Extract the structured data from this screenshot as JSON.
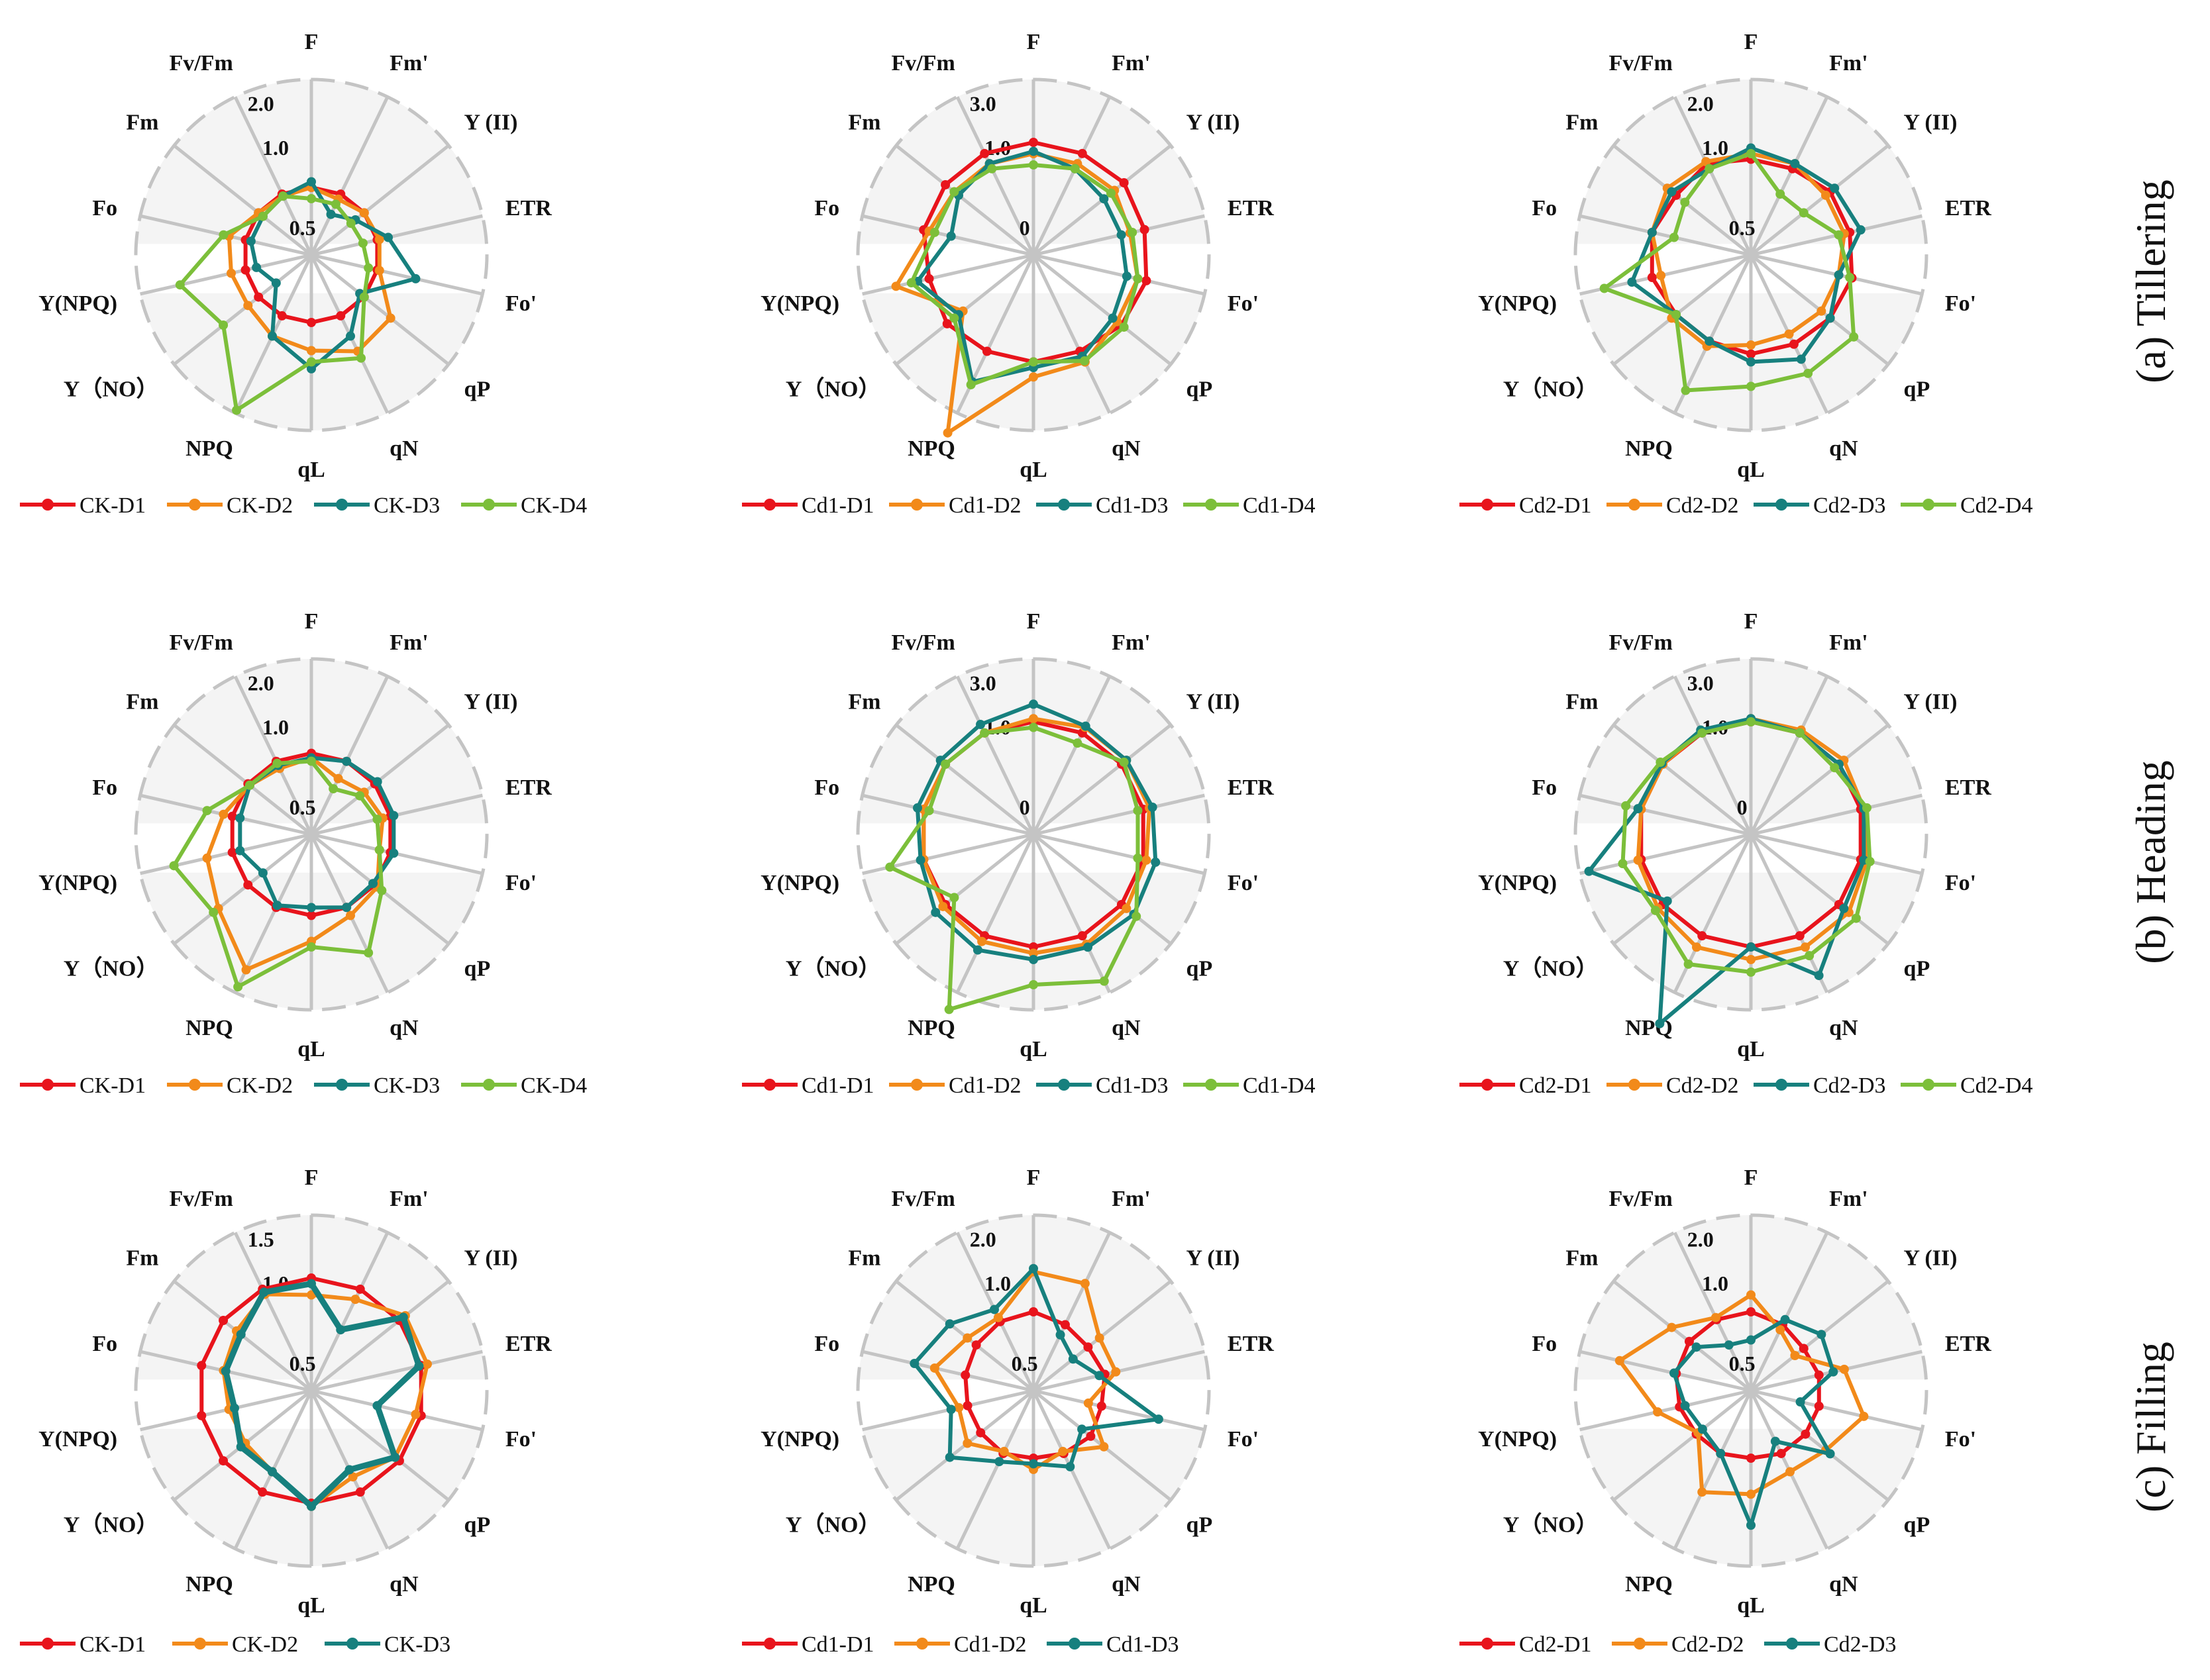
{
  "axes": [
    "F",
    "Fm'",
    "Y (II)",
    "ETR",
    "Fo'",
    "qP",
    "qN",
    "qL",
    "NPQ",
    "Y（NO）",
    "Y(NPQ)",
    "Fo",
    "Fm",
    "Fv/Fm"
  ],
  "colors": {
    "D1": "#e8141c",
    "D2": "#f28a1a",
    "D3": "#17807e",
    "D4": "#7cbf3a",
    "grid": "#c4c4c4",
    "band": "#f4f4f4"
  },
  "row_labels": [
    "(a) Tillering",
    "(b) Heading",
    "(c) Filling"
  ],
  "chart_data": [
    {
      "type": "radar",
      "row": 0,
      "col": 0,
      "ring_labels": [
        "0.5",
        "1.0",
        "2.0"
      ],
      "series": [
        {
          "name": "CK-D1",
          "values": [
            0.6,
            0.6,
            0.6,
            0.6,
            0.6,
            0.6,
            0.6,
            0.6,
            0.6,
            0.6,
            0.6,
            0.6,
            0.6,
            0.6
          ]
        },
        {
          "name": "CK-D2",
          "values": [
            0.6,
            0.55,
            0.6,
            0.62,
            0.62,
            0.9,
            0.95,
            0.85,
            0.8,
            0.72,
            0.73,
            0.75,
            0.6,
            0.58
          ]
        },
        {
          "name": "CK-D3",
          "values": [
            0.65,
            0.4,
            0.5,
            0.7,
            0.95,
            0.55,
            0.8,
            1.02,
            0.8,
            0.4,
            0.5,
            0.55,
            0.55,
            0.58
          ]
        },
        {
          "name": "CK-D4",
          "values": [
            0.5,
            0.5,
            0.45,
            0.47,
            0.52,
            0.6,
            1.03,
            0.95,
            1.95,
            1.0,
            1.35,
            0.8,
            0.55,
            0.58
          ]
        }
      ]
    },
    {
      "type": "radar",
      "row": 0,
      "col": 1,
      "ring_labels": [
        "0",
        "1.0",
        "3.0"
      ],
      "series": [
        {
          "name": "Cd1-D1",
          "values": [
            1.0,
            1.0,
            1.05,
            1.02,
            1.05,
            1.0,
            0.95,
            0.95,
            0.95,
            0.98,
            0.95,
            1.0,
            1.0,
            1.0
          ]
        },
        {
          "name": "Cd1-D2",
          "values": [
            0.9,
            0.9,
            0.92,
            0.88,
            0.95,
            0.95,
            1.1,
            1.15,
            2.35,
            0.8,
            1.45,
            0.95,
            0.9,
            0.9
          ]
        },
        {
          "name": "Cd1-D3",
          "values": [
            0.92,
            0.85,
            0.8,
            0.8,
            0.85,
            0.9,
            1.0,
            1.0,
            1.45,
            0.85,
            1.1,
            0.75,
            0.85,
            0.9
          ]
        },
        {
          "name": "Cd1-D4",
          "values": [
            0.8,
            0.85,
            0.88,
            0.9,
            0.95,
            1.05,
            1.08,
            0.95,
            1.5,
            0.9,
            1.2,
            0.9,
            0.9,
            0.85
          ]
        }
      ]
    },
    {
      "type": "radar",
      "row": 0,
      "col": 2,
      "ring_labels": [
        "0.5",
        "1.0",
        "2.0"
      ],
      "series": [
        {
          "name": "Cd2-D1",
          "values": [
            0.85,
            0.85,
            0.9,
            0.9,
            0.92,
            0.9,
            0.88,
            0.88,
            0.85,
            0.85,
            0.9,
            0.9,
            0.85,
            0.9
          ]
        },
        {
          "name": "Cd2-D2",
          "values": [
            0.9,
            0.9,
            0.85,
            0.85,
            0.8,
            0.8,
            0.78,
            0.8,
            0.9,
            0.9,
            0.82,
            0.9,
            0.95,
            0.92
          ]
        },
        {
          "name": "Cd2-D3",
          "values": [
            0.95,
            0.9,
            0.95,
            1.0,
            0.8,
            0.9,
            1.05,
            0.95,
            0.85,
            0.85,
            1.15,
            0.9,
            0.9,
            0.85
          ]
        },
        {
          "name": "Cd2-D4",
          "values": [
            0.9,
            0.6,
            0.6,
            0.8,
            0.9,
            1.3,
            1.3,
            1.3,
            1.6,
            0.85,
            1.6,
            0.7,
            0.75,
            0.85
          ]
        }
      ]
    },
    {
      "type": "radar",
      "row": 1,
      "col": 0,
      "ring_labels": [
        "0.5",
        "1.0",
        "2.0"
      ],
      "series": [
        {
          "name": "CK-D1",
          "values": [
            0.72,
            0.72,
            0.72,
            0.72,
            0.72,
            0.72,
            0.72,
            0.72,
            0.72,
            0.72,
            0.72,
            0.72,
            0.72,
            0.72
          ]
        },
        {
          "name": "CK-D2",
          "values": [
            0.68,
            0.55,
            0.6,
            0.65,
            0.62,
            0.75,
            0.8,
            0.95,
            1.6,
            1.1,
            0.95,
            0.8,
            0.7,
            0.65
          ]
        },
        {
          "name": "CK-D3",
          "values": [
            0.68,
            0.72,
            0.75,
            0.75,
            0.75,
            0.7,
            0.72,
            0.65,
            0.7,
            0.55,
            0.65,
            0.65,
            0.7,
            0.68
          ]
        },
        {
          "name": "CK-D4",
          "values": [
            0.65,
            0.45,
            0.55,
            0.6,
            0.62,
            0.8,
            1.3,
            1.0,
            1.9,
            1.2,
            1.45,
            0.95,
            0.7,
            0.7
          ]
        }
      ]
    },
    {
      "type": "radar",
      "row": 1,
      "col": 1,
      "ring_labels": [
        "0",
        "1.0",
        "3.0"
      ],
      "series": [
        {
          "name": "Cd1-D1",
          "values": [
            1.0,
            1.0,
            1.0,
            1.0,
            1.0,
            1.0,
            1.0,
            1.0,
            1.0,
            1.0,
            1.0,
            1.0,
            1.0,
            1.0
          ]
        },
        {
          "name": "Cd1-D2",
          "values": [
            1.05,
            1.1,
            1.1,
            1.1,
            1.05,
            1.1,
            1.15,
            1.1,
            1.1,
            1.05,
            1.0,
            1.0,
            1.0,
            1.0
          ]
        },
        {
          "name": "Cd1-D3",
          "values": [
            1.28,
            1.12,
            1.1,
            1.15,
            1.2,
            1.25,
            1.2,
            1.2,
            1.25,
            1.2,
            1.05,
            1.1,
            1.1,
            1.15
          ]
        },
        {
          "name": "Cd1-D4",
          "values": [
            0.95,
            0.9,
            1.05,
            0.95,
            0.95,
            1.3,
            1.8,
            1.6,
            2.3,
            0.9,
            1.55,
            0.95,
            1.0,
            1.0
          ]
        }
      ]
    },
    {
      "type": "radar",
      "row": 1,
      "col": 2,
      "ring_labels": [
        "0",
        "1.0",
        "3.0"
      ],
      "series": [
        {
          "name": "Cd2-D1",
          "values": [
            1.0,
            1.0,
            1.0,
            1.0,
            1.0,
            1.0,
            1.0,
            1.0,
            1.0,
            1.0,
            1.0,
            1.0,
            1.0,
            1.0
          ]
        },
        {
          "name": "Cd2-D2",
          "values": [
            1.05,
            1.05,
            1.1,
            1.05,
            1.1,
            1.2,
            1.2,
            1.2,
            1.2,
            1.1,
            1.05,
            1.0,
            1.0,
            1.02
          ]
        },
        {
          "name": "Cd2-D3",
          "values": [
            1.05,
            1.0,
            1.0,
            1.05,
            1.05,
            1.1,
            1.7,
            1.0,
            2.55,
            0.95,
            1.85,
            1.05,
            1.02,
            1.05
          ]
        },
        {
          "name": "Cd2-D4",
          "values": [
            1.0,
            1.0,
            0.95,
            1.1,
            1.15,
            1.35,
            1.35,
            1.4,
            1.5,
            1.15,
            1.3,
            1.25,
            1.05,
            1.0
          ]
        }
      ]
    },
    {
      "type": "radar",
      "row": 2,
      "col": 0,
      "ring_labels": [
        "0.5",
        "1.0",
        "1.5"
      ],
      "series": [
        {
          "name": "CK-D1",
          "values": [
            1.0,
            1.0,
            1.0,
            1.0,
            1.0,
            1.0,
            1.0,
            1.0,
            1.0,
            1.0,
            1.0,
            1.0,
            1.0,
            1.0
          ]
        },
        {
          "name": "CK-D2",
          "values": [
            0.85,
            0.9,
            1.12,
            1.1,
            0.95,
            0.95,
            0.85,
            1.05,
            0.8,
            0.75,
            0.75,
            0.8,
            0.85,
            0.95
          ]
        },
        {
          "name": "CK-D3",
          "values": [
            0.95,
            0.6,
            1.08,
            0.98,
            0.6,
            0.95,
            0.78,
            1.05,
            0.8,
            0.8,
            0.7,
            0.78,
            0.8,
            0.97
          ]
        }
      ]
    },
    {
      "type": "radar",
      "row": 2,
      "col": 1,
      "ring_labels": [
        "0.5",
        "1.0",
        "2.0"
      ],
      "series": [
        {
          "name": "Cd1-D1",
          "values": [
            0.7,
            0.65,
            0.62,
            0.65,
            0.62,
            0.65,
            0.62,
            0.6,
            0.62,
            0.6,
            0.6,
            0.62,
            0.65,
            0.68
          ]
        },
        {
          "name": "Cd1-D2",
          "values": [
            1.1,
            1.1,
            0.75,
            0.75,
            0.5,
            0.8,
            0.6,
            0.7,
            0.6,
            0.75,
            0.68,
            0.9,
            0.75,
            0.72
          ]
        },
        {
          "name": "Cd1-D3",
          "values": [
            1.15,
            0.55,
            0.45,
            0.6,
            1.25,
            0.55,
            0.75,
            0.65,
            0.7,
            0.95,
            0.75,
            1.15,
            0.95,
            0.8
          ]
        }
      ]
    },
    {
      "type": "radar",
      "row": 2,
      "col": 2,
      "ring_labels": [
        "0.5",
        "1.0",
        "2.0"
      ],
      "series": [
        {
          "name": "Cd2-D1",
          "values": [
            0.7,
            0.65,
            0.6,
            0.62,
            0.62,
            0.62,
            0.62,
            0.6,
            0.62,
            0.62,
            0.65,
            0.68,
            0.7,
            0.7
          ]
        },
        {
          "name": "Cd2-D2",
          "values": [
            0.85,
            0.6,
            0.5,
            0.85,
            1.05,
            0.85,
            0.8,
            0.92,
            1.0,
            0.6,
            0.85,
            1.35,
            0.9,
            0.72
          ]
        },
        {
          "name": "Cd2-D3",
          "values": [
            0.45,
            0.7,
            0.8,
            0.75,
            0.45,
            0.9,
            0.5,
            1.35,
            0.62,
            0.55,
            0.6,
            0.7,
            0.62,
            0.45
          ]
        }
      ]
    }
  ]
}
